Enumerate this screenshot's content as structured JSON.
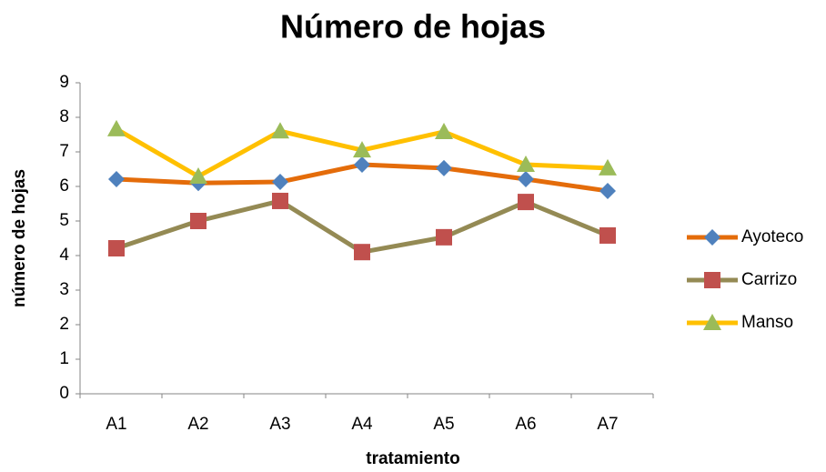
{
  "chart_data": {
    "type": "line",
    "title": "Número de hojas",
    "x_label": "tratamiento",
    "y_label": "número de hojas",
    "categories": [
      "A1",
      "A2",
      "A3",
      "A4",
      "A5",
      "A6",
      "A7"
    ],
    "series": [
      {
        "name": "Ayoteco",
        "color": "#e46c0a",
        "marker": "diamond",
        "marker_color": "#4f81bd",
        "values": [
          6.21,
          6.1,
          6.13,
          6.63,
          6.53,
          6.21,
          5.87
        ]
      },
      {
        "name": "Carrizo",
        "color": "#948a54",
        "marker": "square",
        "marker_color": "#c0504d",
        "values": [
          4.21,
          5.0,
          5.58,
          4.1,
          4.53,
          5.55,
          4.58
        ]
      },
      {
        "name": "Manso",
        "color": "#ffc000",
        "marker": "triangle",
        "marker_color": "#9bbb59",
        "values": [
          7.66,
          6.29,
          7.6,
          7.05,
          7.58,
          6.63,
          6.53
        ]
      }
    ],
    "ylim": [
      0,
      9
    ],
    "yticks": [
      0,
      1,
      2,
      3,
      4,
      5,
      6,
      7,
      8,
      9
    ],
    "grid": false,
    "legend": "right"
  }
}
